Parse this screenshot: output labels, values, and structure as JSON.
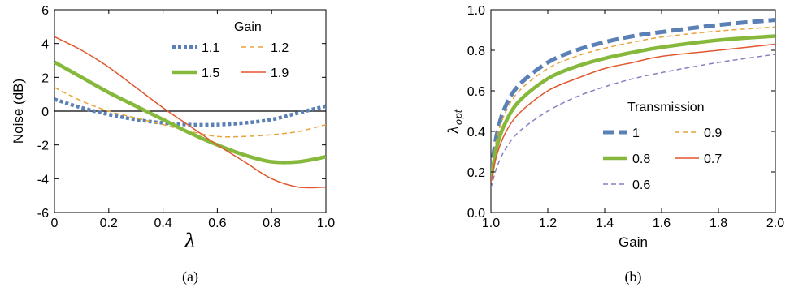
{
  "chart_data": [
    {
      "type": "line",
      "caption": "(a)",
      "xlabel": "λ",
      "ylabel": "Noise (dB)",
      "xlim": [
        0,
        1
      ],
      "ylim": [
        -6,
        6
      ],
      "xticks": [
        "0",
        "0.2",
        "0.4",
        "0.6",
        "0.8",
        "1.0"
      ],
      "yticks": [
        "6",
        "4",
        "2",
        "0",
        "-2",
        "-4",
        "-6"
      ],
      "legend_title": "Gain",
      "legend_position": "top-right",
      "grid": false,
      "reference_line_y": 0,
      "series": [
        {
          "name": "1.1",
          "color": "#5b80b6",
          "style": "dotted-thick",
          "x": [
            0,
            0.1,
            0.2,
            0.3,
            0.4,
            0.5,
            0.6,
            0.7,
            0.8,
            0.9,
            1.0
          ],
          "y": [
            0.7,
            0.2,
            -0.2,
            -0.5,
            -0.7,
            -0.8,
            -0.8,
            -0.7,
            -0.5,
            -0.1,
            0.3
          ]
        },
        {
          "name": "1.2",
          "color": "#e8a33d",
          "style": "dashed-thin",
          "x": [
            0,
            0.1,
            0.2,
            0.3,
            0.4,
            0.5,
            0.6,
            0.7,
            0.8,
            0.9,
            1.0
          ],
          "y": [
            1.4,
            0.6,
            0.0,
            -0.4,
            -0.8,
            -1.2,
            -1.5,
            -1.5,
            -1.4,
            -1.2,
            -0.8
          ]
        },
        {
          "name": "1.5",
          "color": "#86b83c",
          "style": "solid-thick",
          "x": [
            0,
            0.1,
            0.2,
            0.3,
            0.4,
            0.5,
            0.6,
            0.7,
            0.8,
            0.9,
            1.0
          ],
          "y": [
            2.9,
            2.0,
            1.1,
            0.3,
            -0.5,
            -1.3,
            -2.0,
            -2.6,
            -3.0,
            -3.0,
            -2.7
          ]
        },
        {
          "name": "1.9",
          "color": "#e2572e",
          "style": "solid-thin",
          "x": [
            0,
            0.1,
            0.2,
            0.3,
            0.4,
            0.5,
            0.6,
            0.7,
            0.8,
            0.9,
            1.0
          ],
          "y": [
            4.4,
            3.6,
            2.6,
            1.4,
            0.2,
            -0.9,
            -2.0,
            -3.0,
            -4.0,
            -4.5,
            -4.5
          ]
        }
      ]
    },
    {
      "type": "line",
      "caption": "(b)",
      "xlabel": "Gain",
      "ylabel": "λopt",
      "xlim": [
        1.0,
        2.0
      ],
      "ylim": [
        0.0,
        1.0
      ],
      "xticks": [
        "1.0",
        "1.2",
        "1.4",
        "1.6",
        "1.8",
        "2.0"
      ],
      "yticks": [
        "1.0",
        "0.8",
        "0.6",
        "0.4",
        "0.2",
        "0.0"
      ],
      "legend_title": "Transmission",
      "legend_position": "center-right",
      "grid": false,
      "series": [
        {
          "name": "1",
          "color": "#5b80b6",
          "style": "dashed-thick",
          "x": [
            1.0,
            1.02,
            1.05,
            1.1,
            1.2,
            1.3,
            1.4,
            1.5,
            1.6,
            1.8,
            2.0
          ],
          "y": [
            0.19,
            0.38,
            0.52,
            0.63,
            0.74,
            0.8,
            0.84,
            0.87,
            0.89,
            0.925,
            0.95
          ]
        },
        {
          "name": "0.9",
          "color": "#e8a33d",
          "style": "dashed-thin",
          "x": [
            1.0,
            1.02,
            1.05,
            1.1,
            1.2,
            1.3,
            1.4,
            1.5,
            1.6,
            1.8,
            2.0
          ],
          "y": [
            0.18,
            0.36,
            0.49,
            0.6,
            0.71,
            0.77,
            0.81,
            0.84,
            0.865,
            0.895,
            0.915
          ]
        },
        {
          "name": "0.8",
          "color": "#86b83c",
          "style": "solid-thick",
          "x": [
            1.0,
            1.02,
            1.05,
            1.1,
            1.2,
            1.3,
            1.4,
            1.5,
            1.6,
            1.8,
            2.0
          ],
          "y": [
            0.16,
            0.32,
            0.44,
            0.55,
            0.66,
            0.72,
            0.76,
            0.79,
            0.815,
            0.85,
            0.87
          ]
        },
        {
          "name": "0.7",
          "color": "#e2572e",
          "style": "solid-thin",
          "x": [
            1.0,
            1.02,
            1.05,
            1.1,
            1.2,
            1.3,
            1.4,
            1.5,
            1.6,
            1.8,
            2.0
          ],
          "y": [
            0.15,
            0.28,
            0.39,
            0.49,
            0.6,
            0.66,
            0.71,
            0.74,
            0.77,
            0.8,
            0.83
          ]
        },
        {
          "name": "0.6",
          "color": "#8e7cc3",
          "style": "dashed-thin",
          "x": [
            1.0,
            1.02,
            1.05,
            1.1,
            1.2,
            1.3,
            1.4,
            1.5,
            1.6,
            1.8,
            2.0
          ],
          "y": [
            0.12,
            0.22,
            0.31,
            0.4,
            0.5,
            0.57,
            0.62,
            0.66,
            0.69,
            0.74,
            0.78
          ]
        }
      ]
    }
  ]
}
